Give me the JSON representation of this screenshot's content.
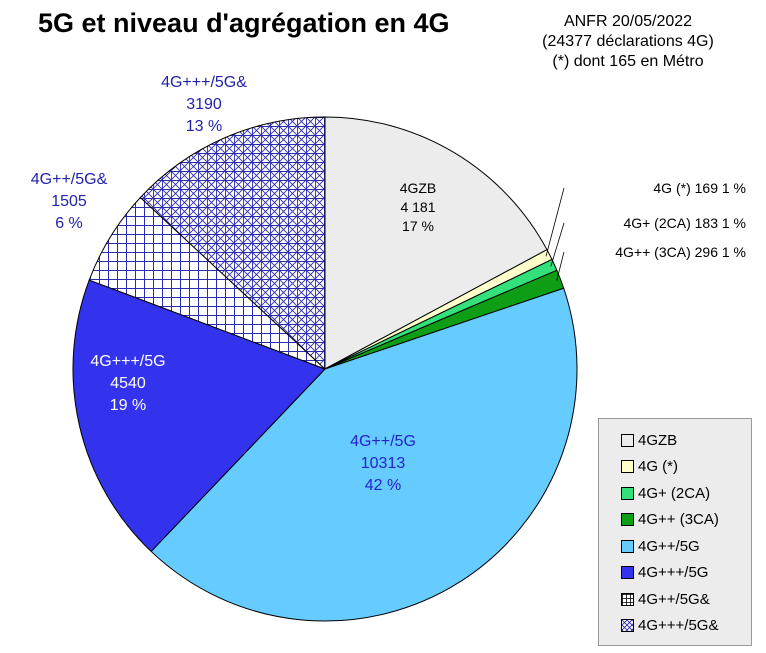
{
  "title": "5G et niveau d'agrégation en 4G",
  "source": {
    "line1": "ANFR 20/05/2022",
    "line2": "(24377 déclarations 4G)",
    "line3": "(*) dont 165 en Métro"
  },
  "chart_data": {
    "type": "pie",
    "title": "5G et niveau d'agrégation en 4G",
    "total": 24377,
    "start": "12 o'clock",
    "direction": "clockwise",
    "legend_position": "bottom-right",
    "slices": [
      {
        "name": "4GZB",
        "value": 4181,
        "percent": 17,
        "label_lines": [
          "4GZB",
          "4 181",
          "17 %"
        ],
        "color": "#ececec",
        "pattern": "none",
        "label_color": "#000000",
        "label_placement": "inside"
      },
      {
        "name": "4G (*)",
        "value": 169,
        "percent": 1,
        "label_lines": [
          "4G (*) 169 1 %"
        ],
        "color": "#ffffcc",
        "pattern": "none",
        "label_color": "#000000",
        "label_placement": "callout"
      },
      {
        "name": "4G+ (2CA)",
        "value": 183,
        "percent": 1,
        "label_lines": [
          "4G+ (2CA) 183 1 %"
        ],
        "color": "#33e07a",
        "pattern": "none",
        "label_color": "#000000",
        "label_placement": "callout"
      },
      {
        "name": "4G++ (3CA)",
        "value": 296,
        "percent": 1,
        "label_lines": [
          "4G++ (3CA) 296 1 %"
        ],
        "color": "#0e9e16",
        "pattern": "none",
        "label_color": "#000000",
        "label_placement": "callout"
      },
      {
        "name": "4G++/5G",
        "value": 10313,
        "percent": 42,
        "label_lines": [
          "4G++/5G",
          "10313",
          "42 %"
        ],
        "color": "#66ccff",
        "pattern": "none",
        "label_color": "#2222cc",
        "label_placement": "inside"
      },
      {
        "name": "4G+++/5G",
        "value": 4540,
        "percent": 19,
        "label_lines": [
          "4G+++/5G",
          "4540",
          "19 %"
        ],
        "color": "#3333ee",
        "pattern": "none",
        "label_color": "#ffffff",
        "label_placement": "inside"
      },
      {
        "name": "4G++/5G&",
        "value": 1505,
        "percent": 6,
        "label_lines": [
          "4G++/5G&",
          "1505",
          "6 %"
        ],
        "color": "#2b2bb0",
        "pattern": "grid",
        "label_color": "#2222aa",
        "label_placement": "outside"
      },
      {
        "name": "4G+++/5G&",
        "value": 3190,
        "percent": 13,
        "label_lines": [
          "4G+++/5G&",
          "3190",
          "13 %"
        ],
        "color": "#2b2bb0",
        "pattern": "crosshatch",
        "label_color": "#2222aa",
        "label_placement": "outside"
      }
    ],
    "legend": [
      "4GZB",
      "4G (*)",
      "4G+ (2CA)",
      "4G++ (3CA)",
      "4G++/5G",
      "4G+++/5G",
      "4G++/5G&",
      "4G+++/5G&"
    ]
  }
}
